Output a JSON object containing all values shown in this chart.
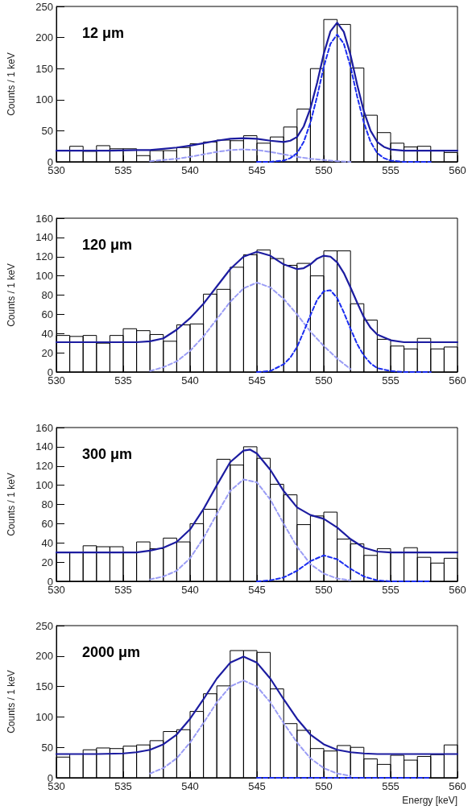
{
  "chart_data": [
    {
      "type": "histogram",
      "annotations": [
        "12 μm"
      ],
      "ylabel": "Counts / 1 keV",
      "xlim": [
        530,
        560
      ],
      "xticks": [
        530,
        535,
        540,
        545,
        550,
        555,
        560
      ],
      "ylim": [
        0,
        250
      ],
      "yticks": [
        0,
        50,
        100,
        150,
        200,
        250
      ],
      "grid": false,
      "bins": [
        530,
        531,
        532,
        533,
        534,
        535,
        536,
        537,
        538,
        539,
        540,
        541,
        542,
        543,
        544,
        545,
        546,
        547,
        548,
        549,
        550,
        551,
        552,
        553,
        554,
        555,
        556,
        557,
        558,
        559,
        560
      ],
      "series": [
        {
          "color": "#000000",
          "values": [
            18,
            25,
            17,
            26,
            21,
            21,
            10,
            18,
            18,
            23,
            29,
            32,
            35,
            34,
            42,
            30,
            40,
            56,
            85,
            150,
            229,
            221,
            151,
            75,
            47,
            30,
            24,
            25,
            18,
            15
          ]
        },
        {
          "type": "line",
          "color": "#9a9cf5",
          "line_style": "dashed",
          "x": [
            537,
            538,
            539,
            540,
            541,
            542,
            543,
            544,
            545,
            546,
            547,
            548,
            549,
            550,
            551,
            552
          ],
          "values": [
            1,
            3,
            5,
            8,
            12,
            16,
            19,
            20,
            19,
            16,
            12,
            8,
            5,
            3,
            1,
            0
          ]
        },
        {
          "type": "line",
          "color": "#1a2cf0",
          "line_style": "dashed",
          "x": [
            545,
            546,
            547,
            547.5,
            548,
            548.5,
            549,
            549.5,
            550,
            550.5,
            551,
            551.5,
            552,
            552.5,
            553,
            553.5,
            554,
            554.5,
            555,
            556,
            558
          ],
          "values": [
            0,
            0,
            2,
            6,
            14,
            32,
            63,
            105,
            153,
            190,
            205,
            190,
            153,
            105,
            63,
            32,
            14,
            6,
            2,
            0,
            0
          ]
        },
        {
          "type": "line",
          "color": "#1c1ca0",
          "line_style": "solid",
          "x": [
            530,
            532,
            534,
            536,
            537,
            538,
            539,
            540,
            541,
            542,
            543,
            544,
            545,
            546,
            547,
            547.5,
            548,
            548.5,
            549,
            549.5,
            550,
            550.5,
            551,
            551.5,
            552,
            552.5,
            553,
            553.5,
            554,
            554.5,
            555,
            556,
            558,
            560
          ],
          "values": [
            18,
            18,
            18,
            19,
            19,
            21,
            23,
            26,
            30,
            34,
            37,
            38,
            37,
            34,
            32,
            34,
            40,
            57,
            86,
            127,
            174,
            210,
            224,
            209,
            172,
            124,
            81,
            50,
            32,
            24,
            20,
            18,
            18,
            18
          ]
        }
      ]
    },
    {
      "type": "histogram",
      "annotations": [
        "120 μm"
      ],
      "ylabel": "Counts / 1 keV",
      "xlim": [
        530,
        560
      ],
      "xticks": [
        530,
        535,
        540,
        545,
        550,
        555,
        560
      ],
      "ylim": [
        0,
        160
      ],
      "yticks": [
        0,
        20,
        40,
        60,
        80,
        100,
        120,
        140,
        160
      ],
      "grid": false,
      "bins": [
        530,
        531,
        532,
        533,
        534,
        535,
        536,
        537,
        538,
        539,
        540,
        541,
        542,
        543,
        544,
        545,
        546,
        547,
        548,
        549,
        550,
        551,
        552,
        553,
        554,
        555,
        556,
        557,
        558,
        559,
        560
      ],
      "series": [
        {
          "color": "#000000",
          "values": [
            38,
            37,
            38,
            30,
            38,
            45,
            43,
            39,
            32,
            49,
            50,
            81,
            86,
            109,
            122,
            127,
            118,
            111,
            113,
            100,
            126,
            126,
            71,
            54,
            34,
            27,
            24,
            35,
            24,
            26
          ]
        },
        {
          "type": "line",
          "color": "#9a9cf5",
          "line_style": "dashed",
          "x": [
            537,
            538,
            539,
            540,
            541,
            542,
            543,
            544,
            545,
            546,
            547,
            548,
            549,
            550,
            551,
            552
          ],
          "values": [
            1,
            5,
            11,
            22,
            37,
            55,
            73,
            87,
            93,
            88,
            76,
            60,
            42,
            27,
            14,
            3
          ]
        },
        {
          "type": "line",
          "color": "#1a2cf0",
          "line_style": "dashed",
          "x": [
            545,
            546,
            547,
            547.5,
            548,
            548.5,
            549,
            549.5,
            550,
            550.5,
            551,
            551.5,
            552,
            552.5,
            553,
            553.5,
            554,
            555,
            556,
            558
          ],
          "values": [
            0,
            1,
            8,
            15,
            26,
            42,
            59,
            75,
            84,
            85,
            77,
            62,
            45,
            29,
            17,
            9,
            4,
            1,
            0,
            0
          ]
        },
        {
          "type": "line",
          "color": "#1c1ca0",
          "line_style": "solid",
          "x": [
            530,
            534,
            536,
            537,
            538,
            539,
            540,
            541,
            542,
            543,
            544,
            545,
            546,
            547,
            548,
            548.5,
            549,
            549.5,
            550,
            550.5,
            551,
            551.5,
            552,
            552.5,
            553,
            553.5,
            554,
            555,
            556,
            558,
            560
          ],
          "values": [
            31,
            31,
            31,
            32,
            35,
            44,
            56,
            71,
            89,
            107,
            120,
            125,
            121,
            112,
            107,
            108,
            112,
            118,
            121,
            120,
            114,
            103,
            88,
            72,
            57,
            46,
            39,
            33,
            31,
            31,
            31
          ]
        }
      ]
    },
    {
      "type": "histogram",
      "annotations": [
        "300 μm"
      ],
      "ylabel": "Counts / 1 keV",
      "xlim": [
        530,
        560
      ],
      "xticks": [
        530,
        535,
        540,
        545,
        550,
        555,
        560
      ],
      "ylim": [
        0,
        160
      ],
      "yticks": [
        0,
        20,
        40,
        60,
        80,
        100,
        120,
        140,
        160
      ],
      "grid": false,
      "bins": [
        530,
        531,
        532,
        533,
        534,
        535,
        536,
        537,
        538,
        539,
        540,
        541,
        542,
        543,
        544,
        545,
        546,
        547,
        548,
        549,
        550,
        551,
        552,
        553,
        554,
        555,
        556,
        557,
        558,
        559,
        560
      ],
      "series": [
        {
          "color": "#000000",
          "values": [
            30,
            30,
            37,
            36,
            36,
            30,
            41,
            34,
            45,
            41,
            60,
            75,
            127,
            121,
            140,
            128,
            101,
            90,
            59,
            68,
            72,
            44,
            39,
            27,
            34,
            30,
            35,
            25,
            19,
            24
          ]
        },
        {
          "type": "line",
          "color": "#9a9cf5",
          "line_style": "dashed",
          "x": [
            537,
            538,
            539,
            540,
            541,
            542,
            543,
            544,
            545,
            546,
            547,
            548,
            549,
            550,
            551,
            552
          ],
          "values": [
            2,
            5,
            11,
            24,
            45,
            70,
            94,
            106,
            103,
            85,
            60,
            36,
            18,
            8,
            3,
            1
          ]
        },
        {
          "type": "line",
          "color": "#1a2cf0",
          "line_style": "dashed",
          "x": [
            545,
            546,
            547,
            548,
            549,
            550,
            551,
            552,
            553,
            554,
            555,
            556,
            557,
            558
          ],
          "values": [
            0,
            1,
            4,
            11,
            21,
            27,
            23,
            13,
            5,
            1,
            0,
            0,
            0,
            0
          ]
        },
        {
          "type": "line",
          "color": "#1c1ca0",
          "line_style": "solid",
          "x": [
            530,
            534,
            536,
            537,
            538,
            539,
            540,
            541,
            542,
            543,
            544,
            544.5,
            545,
            546,
            547,
            548,
            549,
            550,
            551,
            552,
            553,
            554,
            555,
            556,
            558,
            560
          ],
          "values": [
            30,
            30,
            30,
            32,
            35,
            41,
            54,
            75,
            100,
            124,
            136,
            137,
            133,
            116,
            94,
            77,
            69,
            65,
            56,
            44,
            35,
            31,
            30,
            30,
            30,
            30
          ]
        }
      ]
    },
    {
      "type": "histogram",
      "annotations": [
        "2000 μm"
      ],
      "xlabel": "Energy [keV]",
      "ylabel": "Counts / 1 keV",
      "xlim": [
        530,
        560
      ],
      "xticks": [
        530,
        535,
        540,
        545,
        550,
        555,
        560
      ],
      "ylim": [
        0,
        250
      ],
      "yticks": [
        0,
        50,
        100,
        150,
        200,
        250
      ],
      "grid": false,
      "bins": [
        530,
        531,
        532,
        533,
        534,
        535,
        536,
        537,
        538,
        539,
        540,
        541,
        542,
        543,
        544,
        545,
        546,
        547,
        548,
        549,
        550,
        551,
        552,
        553,
        554,
        555,
        556,
        557,
        558,
        559,
        560
      ],
      "series": [
        {
          "color": "#000000",
          "values": [
            34,
            39,
            46,
            49,
            48,
            52,
            54,
            61,
            76,
            79,
            109,
            138,
            151,
            209,
            209,
            206,
            146,
            89,
            78,
            48,
            44,
            53,
            50,
            31,
            22,
            37,
            29,
            35,
            38,
            54
          ]
        },
        {
          "type": "line",
          "color": "#9a9cf5",
          "line_style": "dashed",
          "x": [
            537,
            538,
            539,
            540,
            541,
            542,
            543,
            544,
            545,
            546,
            547,
            548,
            549,
            550,
            551,
            552
          ],
          "values": [
            7,
            16,
            32,
            58,
            90,
            124,
            150,
            160,
            150,
            124,
            90,
            58,
            32,
            16,
            7,
            3
          ]
        },
        {
          "type": "line",
          "color": "#1a2cf0",
          "line_style": "dashed",
          "x": [
            545,
            558
          ],
          "values": [
            0,
            0
          ]
        },
        {
          "type": "line",
          "color": "#1c1ca0",
          "line_style": "solid",
          "x": [
            530,
            533,
            535,
            536,
            537,
            538,
            539,
            540,
            541,
            542,
            543,
            544,
            545,
            546,
            547,
            548,
            549,
            550,
            551,
            552,
            553,
            554,
            556,
            558,
            560
          ],
          "values": [
            39,
            39,
            40,
            42,
            46,
            55,
            71,
            97,
            129,
            163,
            189,
            199,
            189,
            163,
            129,
            97,
            71,
            55,
            46,
            42,
            40,
            39,
            39,
            39,
            39
          ]
        }
      ]
    }
  ]
}
